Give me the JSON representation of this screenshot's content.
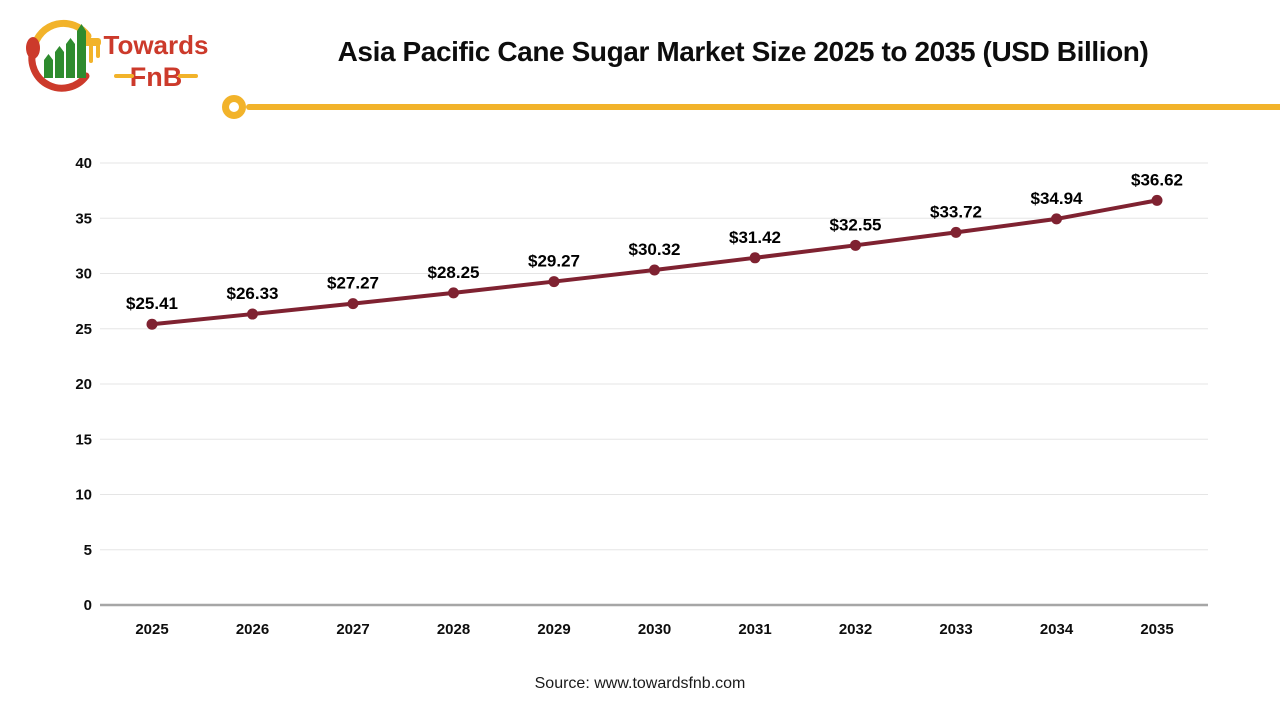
{
  "header": {
    "logo": {
      "brand_top": "Towards",
      "brand_bottom": "FnB"
    }
  },
  "footer": {
    "source": "Source: www.towardsfnb.com"
  },
  "colors": {
    "accent": "#F2B32A",
    "line": "#7F2231",
    "grid": "#E5E5E5",
    "axis": "#A6A6A6",
    "logo_red": "#CC3A2B",
    "logo_green": "#2E8B2E",
    "text": "#0D0D0D"
  },
  "chart_data": {
    "type": "line",
    "title": "Asia Pacific Cane Sugar Market Size 2025 to 2035 (USD Billion)",
    "categories": [
      "2025",
      "2026",
      "2027",
      "2028",
      "2029",
      "2030",
      "2031",
      "2032",
      "2033",
      "2034",
      "2035"
    ],
    "series": [
      {
        "name": "Asia Pacific Cane Sugar Market Size (USD Billion)",
        "values": [
          25.41,
          26.33,
          27.27,
          28.25,
          29.27,
          30.32,
          31.42,
          32.55,
          33.72,
          34.94,
          36.62
        ]
      }
    ],
    "data_labels": [
      "$25.41",
      "$26.33",
      "$27.27",
      "$28.25",
      "$29.27",
      "$30.32",
      "$31.42",
      "$32.55",
      "$33.72",
      "$34.94",
      "$36.62"
    ],
    "xlabel": "",
    "ylabel": "",
    "ylim": [
      0,
      40
    ],
    "ytick_step": 5,
    "grid": true,
    "legend": "none"
  }
}
